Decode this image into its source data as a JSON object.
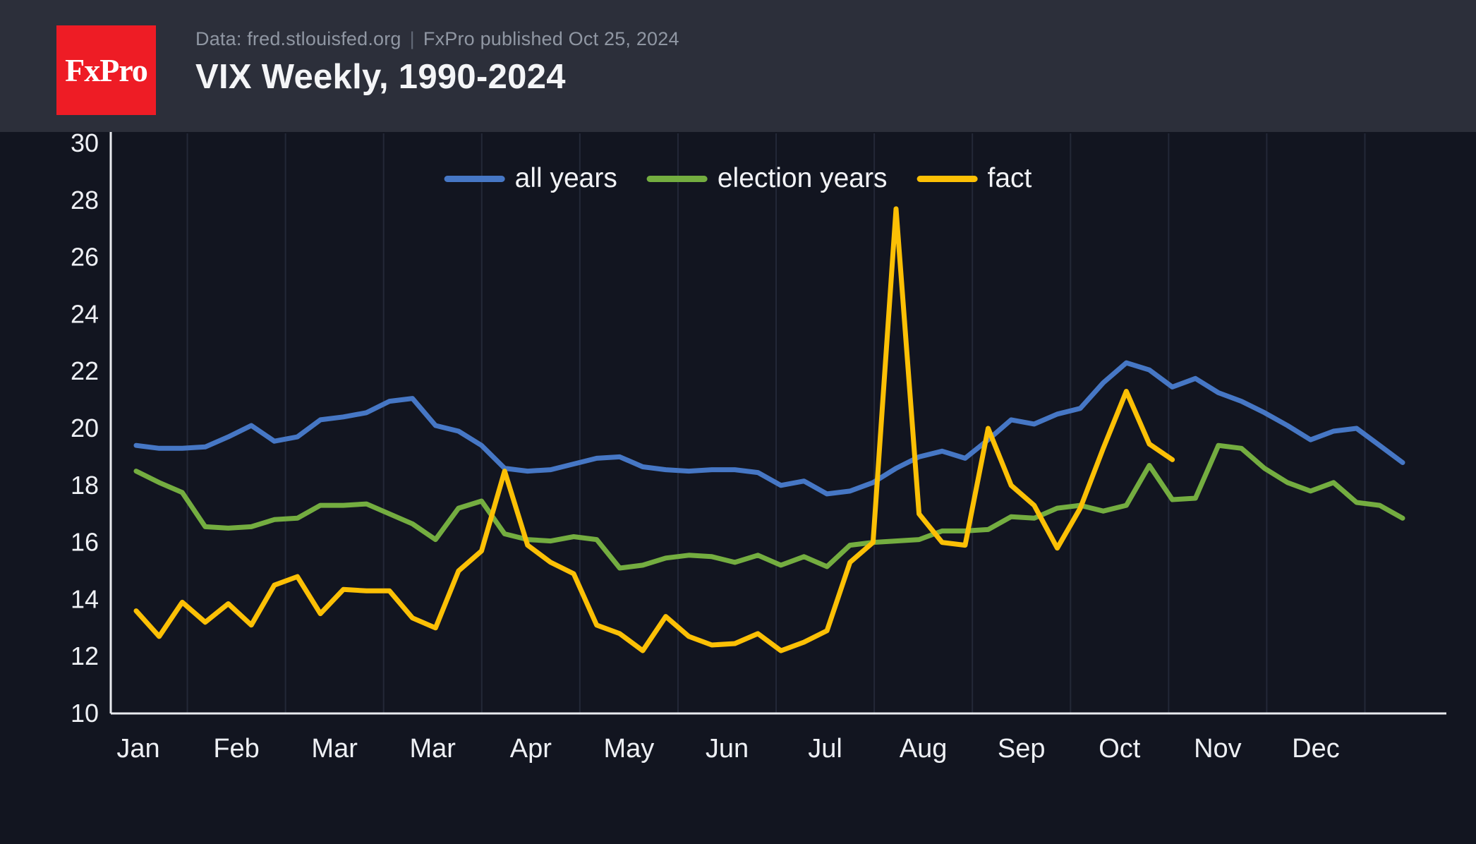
{
  "header": {
    "logo_text": "FxPro",
    "meta_source": "Data: fred.stlouisfed.org",
    "meta_separator": "|",
    "meta_published": "FxPro published Oct 25, 2024",
    "title": "VIX Weekly, 1990-2024"
  },
  "chart_data": {
    "type": "line",
    "title": "VIX Weekly, 1990-2024",
    "x_axis": {
      "tick_labels": [
        "Jan",
        "Feb",
        "Mar",
        "Mar",
        "Apr",
        "May",
        "Jun",
        "Jul",
        "Aug",
        "Sep",
        "Oct",
        "Nov",
        "Dec"
      ]
    },
    "y_axis": {
      "min": 10,
      "max": 30,
      "tick_step": 2,
      "ticks": [
        30,
        28,
        26,
        24,
        22,
        20,
        18,
        16,
        14,
        12,
        10
      ]
    },
    "grid": "vertical",
    "legend_position": "top-center",
    "series": [
      {
        "name": "all years",
        "color": "#4677c5",
        "values": [
          19.4,
          19.3,
          19.3,
          19.35,
          19.7,
          20.1,
          19.55,
          19.7,
          20.3,
          20.4,
          20.55,
          20.95,
          21.05,
          20.1,
          19.9,
          19.4,
          18.6,
          18.5,
          18.55,
          18.75,
          18.95,
          19.0,
          18.65,
          18.55,
          18.5,
          18.55,
          18.55,
          18.45,
          18.0,
          18.15,
          17.7,
          17.8,
          18.1,
          18.6,
          19.0,
          19.2,
          18.95,
          19.6,
          20.3,
          20.15,
          20.5,
          20.7,
          21.6,
          22.3,
          22.05,
          21.45,
          21.75,
          21.25,
          20.95,
          20.55,
          20.1,
          19.6,
          19.9,
          20.0,
          19.4,
          18.8
        ]
      },
      {
        "name": "election years",
        "color": "#74ad40",
        "values": [
          18.5,
          18.1,
          17.75,
          16.55,
          16.5,
          16.55,
          16.8,
          16.85,
          17.3,
          17.3,
          17.35,
          17.0,
          16.65,
          16.1,
          17.2,
          17.45,
          16.3,
          16.1,
          16.05,
          16.2,
          16.1,
          15.1,
          15.2,
          15.45,
          15.55,
          15.5,
          15.3,
          15.55,
          15.2,
          15.5,
          15.15,
          15.9,
          16.0,
          16.05,
          16.1,
          16.4,
          16.4,
          16.45,
          16.9,
          16.85,
          17.2,
          17.3,
          17.1,
          17.3,
          18.7,
          17.5,
          17.55,
          19.4,
          19.3,
          18.6,
          18.1,
          17.8,
          18.1,
          17.4,
          17.3,
          16.85
        ]
      },
      {
        "name": "fact",
        "color": "#fcc005",
        "values": [
          13.6,
          12.7,
          13.9,
          13.2,
          13.85,
          13.1,
          14.5,
          14.8,
          13.5,
          14.35,
          14.3,
          14.3,
          13.35,
          13.0,
          15.0,
          15.7,
          18.5,
          15.9,
          15.3,
          14.9,
          13.1,
          12.8,
          12.2,
          13.4,
          12.7,
          12.4,
          12.45,
          12.8,
          12.2,
          12.5,
          12.9,
          15.3,
          16.0,
          27.7,
          17.0,
          16.0,
          15.9,
          20.0,
          18.0,
          17.3,
          15.8,
          17.2,
          19.3,
          21.3,
          19.45,
          18.9,
          null,
          null,
          null,
          null,
          null,
          null,
          null,
          null,
          null,
          null
        ]
      }
    ]
  },
  "colors": {
    "page_bg": "#121520",
    "header_bg": "#2c2f3a",
    "logo_bg": "#ee1c25",
    "grid": "#232837",
    "axis": "#e9ebef",
    "text_primary": "#eef0f4",
    "text_muted": "#9097a3"
  }
}
